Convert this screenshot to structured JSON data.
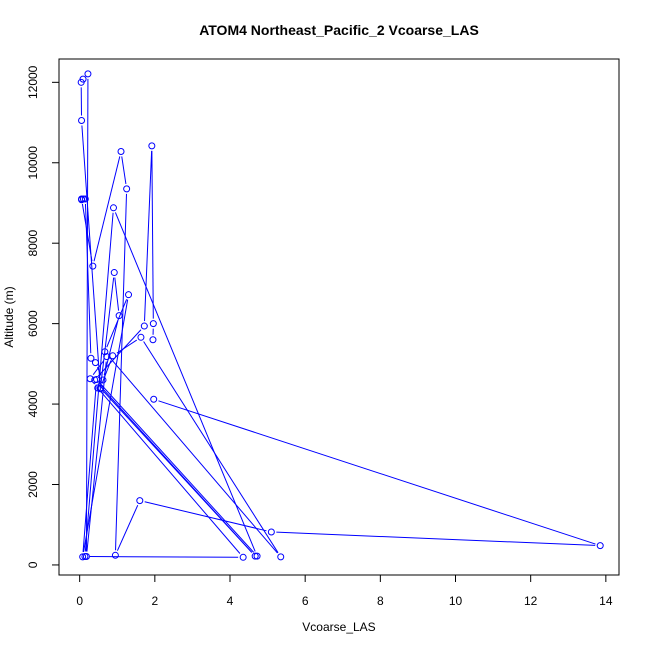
{
  "chart_data": {
    "type": "line",
    "title": "ATOM4 Northeast_Pacific_2 Vcoarse_LAS",
    "xlabel": "Vcoarse_LAS",
    "ylabel": "Altitude (m)",
    "xlim": [
      -0.55,
      14.35
    ],
    "ylim": [
      -250,
      12580
    ],
    "xticks": [
      0,
      2,
      4,
      6,
      8,
      10,
      12,
      14
    ],
    "yticks": [
      0,
      2000,
      4000,
      6000,
      8000,
      10000,
      12000
    ],
    "xtick_labels": [
      "0",
      "2",
      "4",
      "6",
      "8",
      "10",
      "12",
      "14"
    ],
    "ytick_labels": [
      "0",
      "2000",
      "4000",
      "6000",
      "8000",
      "10000",
      "12000"
    ],
    "grid": false,
    "series_color": "#0000ff",
    "series": [
      {
        "x": [
          1.97,
          13.85,
          5.1,
          1.6,
          0.95,
          1.25,
          1.1,
          0.35,
          0.05,
          0.05,
          0.1,
          0.15,
          0.3,
          0.42,
          0.62,
          1.05,
          0.92,
          0.55,
          0.05,
          0.04,
          0.09,
          0.22,
          0.18,
          0.72,
          0.28,
          0.48,
          4.35,
          0.14,
          0.9,
          4.72,
          0.45,
          0.08,
          1.3,
          0.67,
          5.35,
          1.63,
          0.88,
          0.55,
          4.67,
          0.4,
          1.72,
          1.92,
          1.96,
          1.95
        ],
        "y": [
          4120,
          480,
          820,
          1600,
          240,
          9350,
          10280,
          7430,
          9100,
          9080,
          9100,
          9100,
          5140,
          5030,
          4600,
          6200,
          7270,
          4380,
          11050,
          12000,
          12080,
          12210,
          210,
          5180,
          4630,
          4400,
          190,
          210,
          8880,
          220,
          4610,
          200,
          6720,
          5300,
          200,
          5660,
          5200,
          4400,
          220,
          4600,
          5940,
          10420,
          6000,
          5600
        ]
      }
    ]
  }
}
